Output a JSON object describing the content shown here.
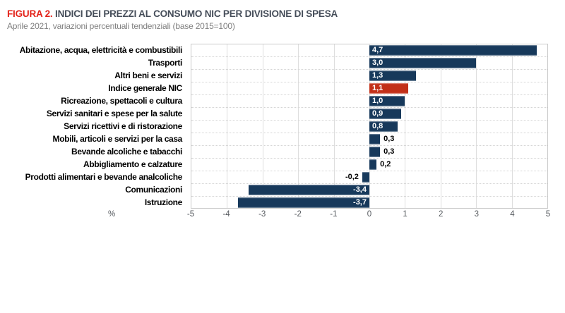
{
  "title": {
    "accent": "FIGURA 2.",
    "main": " INDICI DEI PREZZI AL CONSUMO NIC PER DIVISIONE DI SPESA"
  },
  "subtitle": "Aprile 2021, variazioni  percentuali tendenziali  (base 2015=100)",
  "colors": {
    "bar": "#17395b",
    "highlight": "#c23018",
    "title_accent": "#e32219",
    "title_text": "#454d59",
    "subtitle_text": "#808080",
    "grid": "#dedede",
    "row_separator": "#d4d4d4",
    "plot_border": "#c9c9c9"
  },
  "chart_data": {
    "type": "bar",
    "orientation": "horizontal",
    "title": "FIGURA 2. INDICI DEI PREZZI AL CONSUMO NIC PER DIVISIONE DI SPESA",
    "subtitle": "Aprile 2021, variazioni percentuali tendenziali (base 2015=100)",
    "xlabel": "%",
    "xlim": [
      -5,
      5
    ],
    "xticks": [
      -5,
      -4,
      -3,
      -2,
      -1,
      0,
      1,
      2,
      3,
      4,
      5
    ],
    "grid": true,
    "legend": false,
    "categories": [
      "Abitazione, acqua, elettricità e combustibili",
      "Trasporti",
      "Altri beni e servizi",
      "Indice generale NIC",
      "Ricreazione, spettacoli e cultura",
      "Servizi sanitari e spese per la salute",
      "Servizi ricettivi e di ristorazione",
      "Mobili, articoli e servizi per la casa",
      "Bevande alcoliche e tabacchi",
      "Abbigliamento e calzature",
      "Prodotti alimentari e bevande analcoliche",
      "Comunicazioni",
      "Istruzione"
    ],
    "values": [
      4.7,
      3.0,
      1.3,
      1.1,
      1.0,
      0.9,
      0.8,
      0.3,
      0.3,
      0.2,
      -0.2,
      -3.4,
      -3.7
    ],
    "value_labels": [
      "4,7",
      "3,0",
      "1,3",
      "1,1",
      "1,0",
      "0,9",
      "0,8",
      "0,3",
      "0,3",
      "0,2",
      "-0,2",
      "-3,4",
      "-3,7"
    ],
    "label_placement": [
      "inside",
      "inside",
      "inside",
      "inside",
      "inside",
      "inside",
      "inside",
      "outside",
      "outside",
      "outside",
      "outside",
      "inside",
      "inside"
    ],
    "highlight_index": 3,
    "unit": "%"
  }
}
